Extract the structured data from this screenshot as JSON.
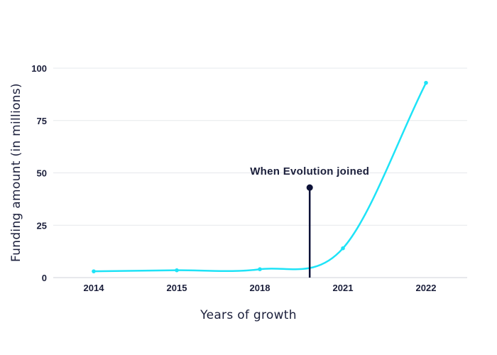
{
  "chart_data": {
    "type": "line",
    "title": "",
    "xlabel": "Years of growth",
    "ylabel": "Funding amount (in millions)",
    "categories": [
      "2014",
      "2015",
      "2018",
      "2021",
      "2022"
    ],
    "x": [
      1,
      2,
      3,
      4,
      5
    ],
    "ylim": [
      0,
      100
    ],
    "yticks": [
      0,
      25,
      50,
      75,
      100
    ],
    "grid": true,
    "series": [
      {
        "values": [
          3,
          3.5,
          4,
          14,
          93
        ],
        "color": "#1ee3f7"
      }
    ],
    "annotation": {
      "text": "When Evolution joined",
      "x": 3.6,
      "y": 43,
      "color": "#0d1238"
    }
  }
}
